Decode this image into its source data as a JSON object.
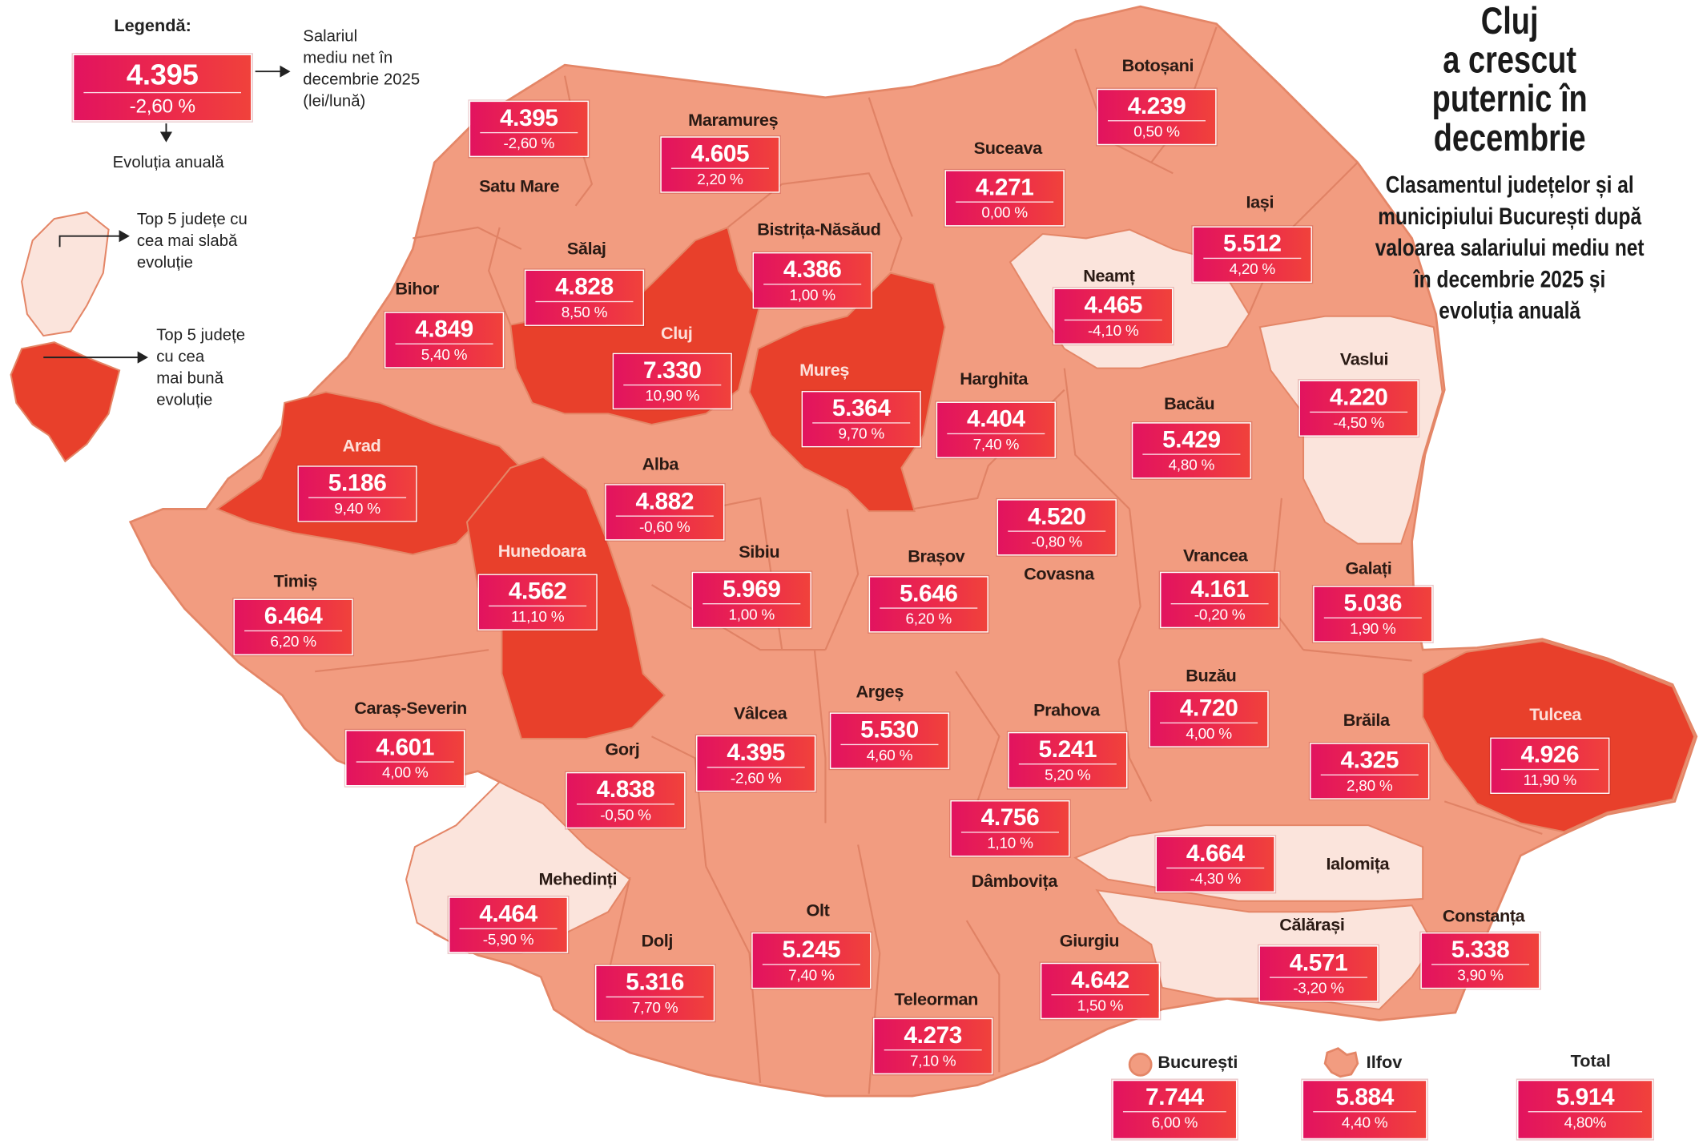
{
  "legend": {
    "title": "Legendă:",
    "sample_salary": "4.395",
    "sample_change": "-2,60 %",
    "value_desc_lines": [
      "Salariul",
      "mediu net în",
      "decembrie 2025",
      "(lei/lună)"
    ],
    "change_desc": "Evoluția anuală",
    "worst_desc_lines": [
      "Top 5 județe cu",
      "cea mai slabă",
      "evoluție"
    ],
    "best_desc_lines": [
      "Top 5 județe",
      "cu cea",
      "mai bună",
      "evoluție"
    ]
  },
  "title": {
    "headline_lines": [
      "Cluj",
      "a crescut",
      "puternic în",
      "decembrie"
    ],
    "subtitle_lines": [
      "Clasamentul județelor și al",
      "municipiului București după",
      "valoarea salariului mediu net",
      "în decembrie 2025 și",
      "evoluția anuală"
    ]
  },
  "colors": {
    "base_county": "#f29c80",
    "best_evolution": "#e8402b",
    "worst_evolution": "#fbe4dc",
    "value_box": "#ec2150"
  },
  "counties": [
    {
      "name": "Satu Mare",
      "salary": "4.395",
      "change": "-2,60 %",
      "category": "normal"
    },
    {
      "name": "Maramureș",
      "salary": "4.605",
      "change": "2,20 %",
      "category": "normal"
    },
    {
      "name": "Botoșani",
      "salary": "4.239",
      "change": "0,50 %",
      "category": "normal"
    },
    {
      "name": "Suceava",
      "salary": "4.271",
      "change": "0,00 %",
      "category": "normal"
    },
    {
      "name": "Iași",
      "salary": "5.512",
      "change": "4,20 %",
      "category": "normal"
    },
    {
      "name": "Bistrița-Năsăud",
      "salary": "4.386",
      "change": "1,00 %",
      "category": "normal"
    },
    {
      "name": "Sălaj",
      "salary": "4.828",
      "change": "8,50 %",
      "category": "normal"
    },
    {
      "name": "Neamț",
      "salary": "4.465",
      "change": "-4,10 %",
      "category": "worst"
    },
    {
      "name": "Bihor",
      "salary": "4.849",
      "change": "5,40 %",
      "category": "normal"
    },
    {
      "name": "Cluj",
      "salary": "7.330",
      "change": "10,90 %",
      "category": "best"
    },
    {
      "name": "Vaslui",
      "salary": "4.220",
      "change": "-4,50 %",
      "category": "worst"
    },
    {
      "name": "Mureș",
      "salary": "5.364",
      "change": "9,70 %",
      "category": "best"
    },
    {
      "name": "Harghita",
      "salary": "4.404",
      "change": "7,40 %",
      "category": "normal"
    },
    {
      "name": "Bacău",
      "salary": "5.429",
      "change": "4,80 %",
      "category": "normal"
    },
    {
      "name": "Arad",
      "salary": "5.186",
      "change": "9,40 %",
      "category": "best"
    },
    {
      "name": "Alba",
      "salary": "4.882",
      "change": "-0,60 %",
      "category": "normal"
    },
    {
      "name": "Covasna",
      "salary": "4.520",
      "change": "-0,80 %",
      "category": "normal"
    },
    {
      "name": "Hunedoara",
      "salary": "4.562",
      "change": "11,10 %",
      "category": "best"
    },
    {
      "name": "Sibiu",
      "salary": "5.969",
      "change": "1,00 %",
      "category": "normal"
    },
    {
      "name": "Brașov",
      "salary": "5.646",
      "change": "6,20 %",
      "category": "normal"
    },
    {
      "name": "Vrancea",
      "salary": "4.161",
      "change": "-0,20 %",
      "category": "normal"
    },
    {
      "name": "Timiș",
      "salary": "6.464",
      "change": "6,20 %",
      "category": "normal"
    },
    {
      "name": "Galați",
      "salary": "5.036",
      "change": "1,90 %",
      "category": "normal"
    },
    {
      "name": "Argeș",
      "salary": "5.530",
      "change": "4,60 %",
      "category": "normal"
    },
    {
      "name": "Buzău",
      "salary": "4.720",
      "change": "4,00 %",
      "category": "normal"
    },
    {
      "name": "Caraș-Severin",
      "salary": "4.601",
      "change": "4,00 %",
      "category": "normal"
    },
    {
      "name": "Prahova",
      "salary": "5.241",
      "change": "5,20 %",
      "category": "normal"
    },
    {
      "name": "Vâlcea",
      "salary": "4.395",
      "change": "-2,60 %",
      "category": "normal"
    },
    {
      "name": "Tulcea",
      "salary": "4.926",
      "change": "11,90 %",
      "category": "best"
    },
    {
      "name": "Brăila",
      "salary": "4.325",
      "change": "2,80 %",
      "category": "normal"
    },
    {
      "name": "Gorj",
      "salary": "4.838",
      "change": "-0,50 %",
      "category": "normal"
    },
    {
      "name": "Dâmbovița",
      "salary": "4.756",
      "change": "1,10 %",
      "category": "normal"
    },
    {
      "name": "Ialomița",
      "salary": "4.664",
      "change": "-4,30 %",
      "category": "worst"
    },
    {
      "name": "Mehedinți",
      "salary": "4.464",
      "change": "-5,90 %",
      "category": "worst"
    },
    {
      "name": "Olt",
      "salary": "5.245",
      "change": "7,40 %",
      "category": "normal"
    },
    {
      "name": "Constanța",
      "salary": "5.338",
      "change": "3,90 %",
      "category": "normal"
    },
    {
      "name": "Călărași",
      "salary": "4.571",
      "change": "-3,20 %",
      "category": "worst"
    },
    {
      "name": "Dolj",
      "salary": "5.316",
      "change": "7,70 %",
      "category": "normal"
    },
    {
      "name": "Giurgiu",
      "salary": "4.642",
      "change": "1,50 %",
      "category": "normal"
    },
    {
      "name": "Teleorman",
      "salary": "4.273",
      "change": "7,10 %",
      "category": "normal"
    }
  ],
  "summary": {
    "bucuresti": {
      "name": "București",
      "salary": "7.744",
      "change": "6,00 %"
    },
    "ilfov": {
      "name": "Ilfov",
      "salary": "5.884",
      "change": "4,40 %"
    },
    "total": {
      "name": "Total",
      "salary": "5.914",
      "change": "4,80%"
    }
  }
}
